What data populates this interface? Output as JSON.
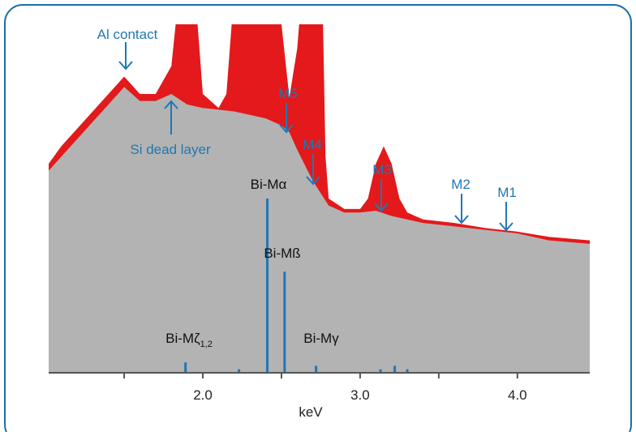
{
  "chart_data": {
    "type": "spectrum",
    "x_label": "keV",
    "xlim": [
      1.02,
      4.46
    ],
    "ylim": [
      0,
      100
    ],
    "xticks": [
      {
        "value": 2,
        "label": "2.0"
      },
      {
        "value": 3,
        "label": "3.0"
      },
      {
        "value": 4,
        "label": "4.0"
      }
    ],
    "minor_xticks": [
      1.5,
      2.5,
      3.5
    ],
    "series": [
      {
        "color": "#e4191b",
        "x": [
          1.02,
          1.1,
          1.3,
          1.5,
          1.6,
          1.7,
          1.8,
          1.85,
          1.95,
          2.0,
          2.1,
          2.15,
          2.2,
          2.4,
          2.5,
          2.55,
          2.6,
          2.63,
          2.76,
          2.78,
          2.8,
          2.9,
          3.0,
          3.05,
          3.1,
          3.15,
          3.2,
          3.25,
          3.3,
          3.4,
          3.6,
          3.8,
          4.0,
          4.2,
          4.46
        ],
        "values": [
          60,
          65,
          75,
          85,
          80,
          80,
          88,
          110,
          110,
          80,
          76,
          80,
          110,
          110,
          100,
          79,
          93,
          110,
          110,
          62,
          50,
          47,
          47,
          50,
          60,
          65,
          60,
          50,
          46,
          44,
          43,
          41.5,
          40.5,
          39,
          38
        ]
      },
      {
        "color": "#b3b3b3",
        "x": [
          1.02,
          1.1,
          1.3,
          1.5,
          1.6,
          1.7,
          1.8,
          1.9,
          2.0,
          2.2,
          2.4,
          2.5,
          2.55,
          2.6,
          2.7,
          2.8,
          2.9,
          3.0,
          3.1,
          3.2,
          3.4,
          3.6,
          3.8,
          4.0,
          4.2,
          4.46
        ],
        "values": [
          58,
          62,
          72,
          82,
          78,
          78,
          80,
          77,
          76,
          75,
          73,
          71,
          69,
          64,
          55,
          48,
          46,
          46,
          46.5,
          45,
          43,
          42,
          41,
          40,
          38,
          37
        ]
      }
    ],
    "lines": {
      "color": "#1f77b4",
      "x": [
        1.89,
        2.23,
        2.41,
        2.52,
        2.72,
        3.13,
        3.22,
        3.3
      ],
      "values": [
        3,
        1,
        50,
        29,
        2,
        1,
        2,
        1
      ]
    },
    "line_labels": [
      {
        "text": "Bi-Mα"
      },
      {
        "text": "Bi-Mß"
      },
      {
        "text": "Bi-Mγ"
      },
      {
        "text": "Bi-Mζ",
        "subscript": "1,2"
      }
    ],
    "annotations": [
      "Al contact",
      "Si dead layer",
      "M5",
      "M4",
      "M3",
      "M2",
      "M1"
    ]
  }
}
